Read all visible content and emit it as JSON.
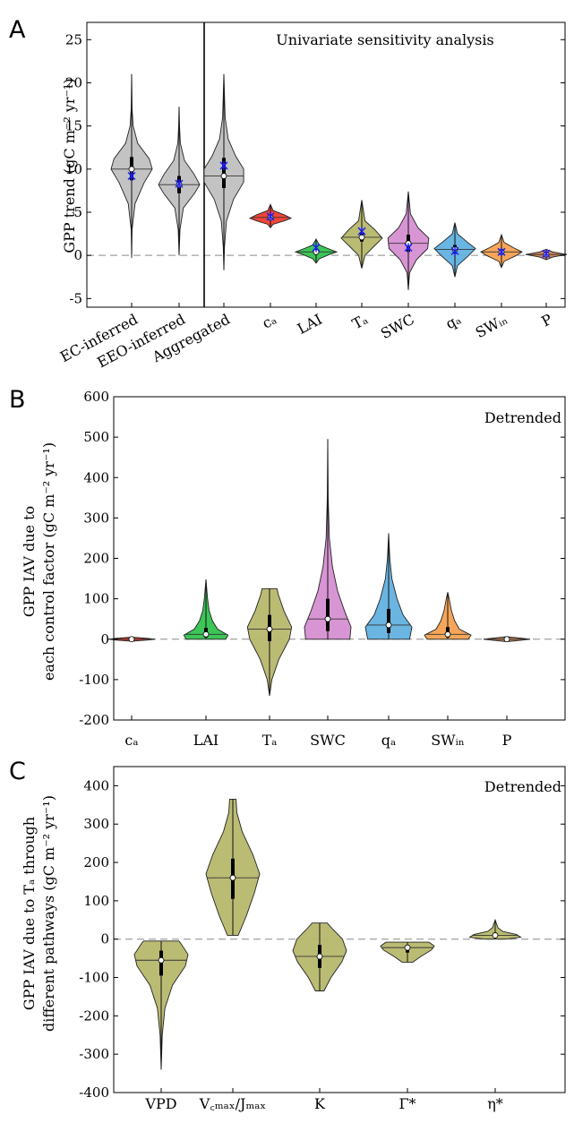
{
  "chart_data": [
    {
      "panel": "A",
      "type": "violin",
      "annotation": "Univariate sensitivity analysis",
      "ylabel": "GPP trend (gC m⁻² yr⁻¹)",
      "ylim": [
        -6,
        27
      ],
      "yticks": [
        -5,
        0,
        5,
        10,
        15,
        20,
        25
      ],
      "categories": [
        "EC-inferred",
        "EEO-inferred",
        "Aggregated",
        "cₐ",
        "LAI",
        "Tₐ",
        "SWC",
        "qₐ",
        "SWᵢₙ",
        "P"
      ],
      "category_colors": [
        "#c0c0c0",
        "#c0c0c0",
        "#c0c0c0",
        "#f03c2c",
        "#33c24e",
        "#b7b86d",
        "#d68fd2",
        "#62b1e0",
        "#f6a151",
        "#c68157"
      ],
      "violins": [
        {
          "min": 0,
          "max": 21,
          "median": 10,
          "q1": 8.7,
          "q3": 11.4,
          "shape": [
            [
              -0.3,
              0
            ],
            [
              3,
              0.02
            ],
            [
              6,
              0.16
            ],
            [
              8.4,
              0.58
            ],
            [
              10,
              0.96
            ],
            [
              11.2,
              0.82
            ],
            [
              13,
              0.28
            ],
            [
              15,
              0.07
            ],
            [
              17,
              0.02
            ],
            [
              21,
              0
            ]
          ]
        },
        {
          "min": 0.3,
          "max": 17.2,
          "median": 8.2,
          "q1": 7.2,
          "q3": 9.2,
          "shape": [
            [
              0,
              0
            ],
            [
              3,
              0.04
            ],
            [
              5.5,
              0.2
            ],
            [
              7.2,
              0.72
            ],
            [
              8.2,
              0.96
            ],
            [
              9.4,
              0.7
            ],
            [
              11,
              0.25
            ],
            [
              13,
              0.06
            ],
            [
              15,
              0.02
            ],
            [
              17.2,
              0
            ]
          ]
        },
        {
          "min": -1.7,
          "max": 21,
          "median": 9.2,
          "q1": 7.8,
          "q3": 11.3,
          "shape": [
            [
              -1.7,
              0
            ],
            [
              1,
              0.03
            ],
            [
              4,
              0.12
            ],
            [
              6.5,
              0.45
            ],
            [
              8.5,
              0.92
            ],
            [
              10,
              0.92
            ],
            [
              11.5,
              0.55
            ],
            [
              13.5,
              0.2
            ],
            [
              16,
              0.06
            ],
            [
              21,
              0
            ]
          ]
        },
        {
          "min": 3.3,
          "max": 5.8,
          "median": 4.4,
          "q1": 4.2,
          "q3": 4.6,
          "shape": [
            [
              3.2,
              0
            ],
            [
              3.6,
              0.12
            ],
            [
              4.0,
              0.65
            ],
            [
              4.3,
              0.96
            ],
            [
              4.7,
              0.65
            ],
            [
              5.2,
              0.12
            ],
            [
              5.9,
              0
            ]
          ]
        },
        {
          "min": -0.8,
          "max": 1.8,
          "median": 0.4,
          "q1": 0.2,
          "q3": 0.6,
          "shape": [
            [
              -0.9,
              0
            ],
            [
              -0.4,
              0.15
            ],
            [
              0.1,
              0.62
            ],
            [
              0.4,
              0.96
            ],
            [
              0.8,
              0.55
            ],
            [
              1.2,
              0.15
            ],
            [
              1.9,
              0
            ]
          ]
        },
        {
          "min": -1.5,
          "max": 6.4,
          "median": 2.1,
          "q1": 1.6,
          "q3": 2.6,
          "shape": [
            [
              -1.5,
              0
            ],
            [
              0,
              0.15
            ],
            [
              1,
              0.55
            ],
            [
              2,
              0.96
            ],
            [
              3,
              0.6
            ],
            [
              4,
              0.15
            ],
            [
              6.4,
              0
            ]
          ]
        },
        {
          "min": -4,
          "max": 7.4,
          "median": 1.4,
          "q1": 0.4,
          "q3": 2.4,
          "shape": [
            [
              -4,
              0
            ],
            [
              -2,
              0.06
            ],
            [
              -0.5,
              0.38
            ],
            [
              0.8,
              0.9
            ],
            [
              2,
              0.95
            ],
            [
              3.2,
              0.45
            ],
            [
              4.8,
              0.1
            ],
            [
              7.4,
              0
            ]
          ]
        },
        {
          "min": -2.5,
          "max": 3.8,
          "median": 0.7,
          "q1": 0.2,
          "q3": 1.2,
          "shape": [
            [
              -2.5,
              0
            ],
            [
              -1.2,
              0.12
            ],
            [
              0,
              0.65
            ],
            [
              0.8,
              0.96
            ],
            [
              1.6,
              0.55
            ],
            [
              2.5,
              0.12
            ],
            [
              3.8,
              0
            ]
          ]
        },
        {
          "min": -1.4,
          "max": 2.4,
          "median": 0.4,
          "q1": 0.1,
          "q3": 0.7,
          "shape": [
            [
              -1.4,
              0
            ],
            [
              -0.7,
              0.12
            ],
            [
              0,
              0.7
            ],
            [
              0.4,
              0.96
            ],
            [
              0.9,
              0.55
            ],
            [
              1.5,
              0.12
            ],
            [
              2.4,
              0
            ]
          ]
        },
        {
          "min": -0.5,
          "max": 0.7,
          "median": 0.1,
          "q1": 0,
          "q3": 0.2,
          "shape": [
            [
              -0.5,
              0
            ],
            [
              -0.2,
              0.3
            ],
            [
              0.1,
              0.96
            ],
            [
              0.4,
              0.3
            ],
            [
              0.7,
              0
            ]
          ]
        }
      ],
      "markers": [
        {
          "category": "EC-inferred",
          "value": 9.2
        },
        {
          "category": "EEO-inferred",
          "value": 8.3
        },
        {
          "category": "Aggregated",
          "value": 10.4
        },
        {
          "category": "cₐ",
          "value": 4.5
        },
        {
          "category": "LAI",
          "value": 0.9
        },
        {
          "category": "Tₐ",
          "value": 2.8
        },
        {
          "category": "SWC",
          "value": 0.9
        },
        {
          "category": "qₐ",
          "value": 0.5
        },
        {
          "category": "SWᵢₙ",
          "value": 0.4
        },
        {
          "category": "P",
          "value": 0.2
        }
      ],
      "marker_color": "#1f1ff0",
      "zero_line": true,
      "divider_after_category": 1
    },
    {
      "panel": "B",
      "type": "violin",
      "annotation": "Detrended",
      "ylabel_line1": "GPP IAV due to",
      "ylabel_line2": "each control factor (gC m⁻² yr⁻¹)",
      "ylim": [
        -200,
        600
      ],
      "yticks": [
        -200,
        -100,
        0,
        100,
        200,
        300,
        400,
        500,
        600
      ],
      "categories": [
        "cₐ",
        "LAI",
        "Tₐ",
        "SWC",
        "qₐ",
        "SWᵢₙ",
        "P"
      ],
      "category_colors": [
        "#f03c2c",
        "#33c24e",
        "#b7b86d",
        "#d68fd2",
        "#62b1e0",
        "#f6a151",
        "#c68157"
      ],
      "violins": [
        {
          "min": -4,
          "max": 5,
          "median": 0,
          "q1": -1,
          "q3": 1,
          "shape": [
            [
              -5,
              0
            ],
            [
              -2,
              0.7
            ],
            [
              0,
              1
            ],
            [
              2,
              0.7
            ],
            [
              5,
              0
            ]
          ]
        },
        {
          "min": 0,
          "max": 148,
          "median": 12,
          "q1": 4,
          "q3": 28,
          "shape": [
            [
              0,
              0.85
            ],
            [
              10,
              0.95
            ],
            [
              25,
              0.5
            ],
            [
              45,
              0.28
            ],
            [
              70,
              0.14
            ],
            [
              100,
              0.07
            ],
            [
              148,
              0
            ]
          ]
        },
        {
          "min": -140,
          "max": 125,
          "median": 25,
          "q1": -5,
          "q3": 60,
          "shape": [
            [
              -140,
              0
            ],
            [
              -100,
              0.1
            ],
            [
              -50,
              0.4
            ],
            [
              0,
              0.85
            ],
            [
              30,
              0.95
            ],
            [
              70,
              0.62
            ],
            [
              110,
              0.38
            ],
            [
              125,
              0.32
            ]
          ]
        },
        {
          "min": 0,
          "max": 495,
          "median": 50,
          "q1": 20,
          "q3": 100,
          "shape": [
            [
              0,
              0.95
            ],
            [
              30,
              1
            ],
            [
              70,
              0.72
            ],
            [
              120,
              0.42
            ],
            [
              180,
              0.2
            ],
            [
              250,
              0.07
            ],
            [
              350,
              0.02
            ],
            [
              495,
              0
            ]
          ]
        },
        {
          "min": 0,
          "max": 262,
          "median": 35,
          "q1": 15,
          "q3": 75,
          "shape": [
            [
              0,
              0.9
            ],
            [
              30,
              1
            ],
            [
              60,
              0.62
            ],
            [
              100,
              0.36
            ],
            [
              150,
              0.14
            ],
            [
              200,
              0.05
            ],
            [
              262,
              0
            ]
          ]
        },
        {
          "min": 0,
          "max": 116,
          "median": 12,
          "q1": 4,
          "q3": 30,
          "shape": [
            [
              0,
              0.88
            ],
            [
              10,
              1
            ],
            [
              25,
              0.5
            ],
            [
              45,
              0.3
            ],
            [
              70,
              0.16
            ],
            [
              100,
              0.06
            ],
            [
              116,
              0
            ]
          ]
        },
        {
          "min": -5,
          "max": 6,
          "median": 0,
          "q1": -1,
          "q3": 1,
          "shape": [
            [
              -6,
              0
            ],
            [
              -2,
              0.7
            ],
            [
              0,
              1
            ],
            [
              2,
              0.7
            ],
            [
              6,
              0
            ]
          ]
        }
      ],
      "zero_line": true
    },
    {
      "panel": "C",
      "type": "violin",
      "annotation": "Detrended",
      "ylabel_line1": "GPP IAV due to Tₐ through",
      "ylabel_line2": "different pathways (gC m⁻² yr⁻¹)",
      "ylim": [
        -400,
        450
      ],
      "yticks": [
        -400,
        -300,
        -200,
        -100,
        0,
        100,
        200,
        300,
        400
      ],
      "categories": [
        "VPD",
        "V꜀ₘₐₓ/Jₘₐₓ",
        "K",
        "Γ*",
        "η*"
      ],
      "category_colors": [
        "#b7b86d",
        "#b7b86d",
        "#b7b86d",
        "#b7b86d",
        "#b7b86d"
      ],
      "violins": [
        {
          "min": -340,
          "max": -5,
          "median": -55,
          "q1": -95,
          "q3": -30,
          "shape": [
            [
              -340,
              0
            ],
            [
              -250,
              0.04
            ],
            [
              -180,
              0.14
            ],
            [
              -120,
              0.42
            ],
            [
              -70,
              0.9
            ],
            [
              -40,
              1
            ],
            [
              -10,
              0.72
            ],
            [
              -5,
              0.66
            ]
          ]
        },
        {
          "min": 10,
          "max": 365,
          "median": 160,
          "q1": 105,
          "q3": 210,
          "shape": [
            [
              10,
              0.2
            ],
            [
              60,
              0.5
            ],
            [
              120,
              0.8
            ],
            [
              170,
              1
            ],
            [
              220,
              0.75
            ],
            [
              280,
              0.35
            ],
            [
              330,
              0.15
            ],
            [
              365,
              0.12
            ]
          ]
        },
        {
          "min": -135,
          "max": 42,
          "median": -45,
          "q1": -75,
          "q3": -15,
          "shape": [
            [
              -135,
              0.16
            ],
            [
              -100,
              0.42
            ],
            [
              -60,
              0.82
            ],
            [
              -30,
              1
            ],
            [
              0,
              0.85
            ],
            [
              25,
              0.5
            ],
            [
              42,
              0.28
            ]
          ]
        },
        {
          "min": -60,
          "max": -8,
          "median": -22,
          "q1": -35,
          "q3": -15,
          "shape": [
            [
              -60,
              0.2
            ],
            [
              -45,
              0.5
            ],
            [
              -28,
              0.9
            ],
            [
              -18,
              1
            ],
            [
              -8,
              0.8
            ]
          ]
        },
        {
          "min": 0,
          "max": 50,
          "median": 10,
          "q1": 5,
          "q3": 15,
          "shape": [
            [
              0,
              0.4
            ],
            [
              5,
              0.95
            ],
            [
              12,
              0.8
            ],
            [
              20,
              0.28
            ],
            [
              30,
              0.1
            ],
            [
              50,
              0
            ]
          ]
        }
      ],
      "zero_line": true
    }
  ],
  "panel_letters": [
    "A",
    "B",
    "C"
  ]
}
